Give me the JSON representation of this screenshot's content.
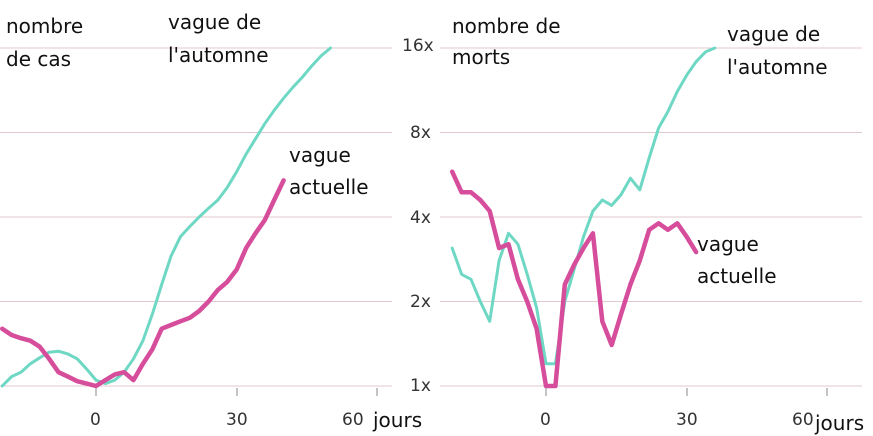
{
  "chart_data": [
    {
      "type": "line",
      "ylabel": "nombre de cas",
      "xlabel": "jours",
      "xlim": [
        -20,
        60
      ],
      "xticks": [
        0,
        30,
        60
      ],
      "ylim": [
        1,
        16
      ],
      "yscale": "log2",
      "yticks": [
        1,
        2,
        4,
        8,
        16
      ],
      "ytick_labels": [
        "1x",
        "2x",
        "4x",
        "8x",
        "16x"
      ],
      "grid": true,
      "series": [
        {
          "name": "vague de l'automne",
          "color": "#6ed8c4",
          "x": [
            -20,
            -18,
            -16,
            -14,
            -12,
            -10,
            -8,
            -6,
            -4,
            -2,
            0,
            2,
            4,
            6,
            8,
            10,
            12,
            14,
            16,
            18,
            20,
            22,
            24,
            26,
            28,
            30,
            32,
            34,
            36,
            38,
            40,
            42,
            44,
            46,
            48,
            50
          ],
          "y": [
            1.0,
            1.08,
            1.12,
            1.2,
            1.26,
            1.32,
            1.33,
            1.3,
            1.25,
            1.15,
            1.05,
            1.02,
            1.05,
            1.12,
            1.25,
            1.45,
            1.8,
            2.3,
            2.9,
            3.4,
            3.7,
            4.0,
            4.3,
            4.6,
            5.1,
            5.8,
            6.7,
            7.6,
            8.6,
            9.6,
            10.6,
            11.6,
            12.6,
            13.8,
            15.0,
            16.0
          ]
        },
        {
          "name": "vague actuelle",
          "color": "#d64d9c",
          "x": [
            -20,
            -18,
            -16,
            -14,
            -12,
            -10,
            -8,
            -6,
            -4,
            -2,
            0,
            2,
            4,
            6,
            8,
            10,
            12,
            14,
            16,
            18,
            20,
            22,
            24,
            26,
            28,
            30,
            32,
            34,
            36,
            38,
            40
          ],
          "y": [
            1.6,
            1.52,
            1.48,
            1.45,
            1.38,
            1.25,
            1.12,
            1.08,
            1.04,
            1.02,
            1.0,
            1.05,
            1.1,
            1.12,
            1.05,
            1.2,
            1.35,
            1.6,
            1.65,
            1.7,
            1.75,
            1.85,
            2.0,
            2.2,
            2.35,
            2.6,
            3.1,
            3.5,
            3.9,
            4.6,
            5.4
          ]
        }
      ],
      "annotations": {
        "ylabel_line1": "nombre",
        "ylabel_line2": "de cas",
        "series1_line1": "vague de",
        "series1_line2": "l'automne",
        "series2_line1": "vague",
        "series2_line2": "actuelle"
      }
    },
    {
      "type": "line",
      "ylabel": "nombre de morts",
      "xlabel": "jours",
      "xlim": [
        -20,
        60
      ],
      "xticks": [
        0,
        30,
        60
      ],
      "ylim": [
        1,
        16
      ],
      "yscale": "log2",
      "grid": true,
      "series": [
        {
          "name": "vague de l'automne",
          "color": "#6ed8c4",
          "x": [
            -20,
            -18,
            -16,
            -14,
            -12,
            -10,
            -8,
            -6,
            -4,
            -2,
            0,
            2,
            4,
            6,
            8,
            10,
            12,
            14,
            16,
            18,
            20,
            22,
            24,
            26,
            28,
            30,
            32,
            34,
            36
          ],
          "y": [
            3.1,
            2.5,
            2.4,
            2.0,
            1.7,
            2.8,
            3.5,
            3.2,
            2.5,
            1.9,
            1.2,
            1.2,
            2.0,
            2.6,
            3.4,
            4.2,
            4.6,
            4.4,
            4.8,
            5.5,
            5.0,
            6.5,
            8.3,
            9.5,
            11.2,
            12.8,
            14.3,
            15.5,
            16.0
          ]
        },
        {
          "name": "vague actuelle",
          "color": "#d64d9c",
          "x": [
            -20,
            -18,
            -16,
            -14,
            -12,
            -10,
            -8,
            -6,
            -4,
            -2,
            0,
            2,
            4,
            6,
            8,
            10,
            12,
            14,
            16,
            18,
            20,
            22,
            24,
            26,
            28,
            30,
            32
          ],
          "y": [
            5.8,
            4.9,
            4.9,
            4.6,
            4.2,
            3.1,
            3.2,
            2.4,
            2.0,
            1.6,
            1.0,
            1.0,
            2.3,
            2.7,
            3.1,
            3.5,
            1.7,
            1.4,
            1.8,
            2.3,
            2.8,
            3.6,
            3.8,
            3.6,
            3.8,
            3.4,
            3.0
          ]
        }
      ],
      "annotations": {
        "ylabel_line1": "nombre de",
        "ylabel_line2": "morts",
        "series1_line1": "vague de",
        "series1_line2": "l'automne",
        "series2_line1": "vague",
        "series2_line2": "actuelle"
      }
    }
  ]
}
